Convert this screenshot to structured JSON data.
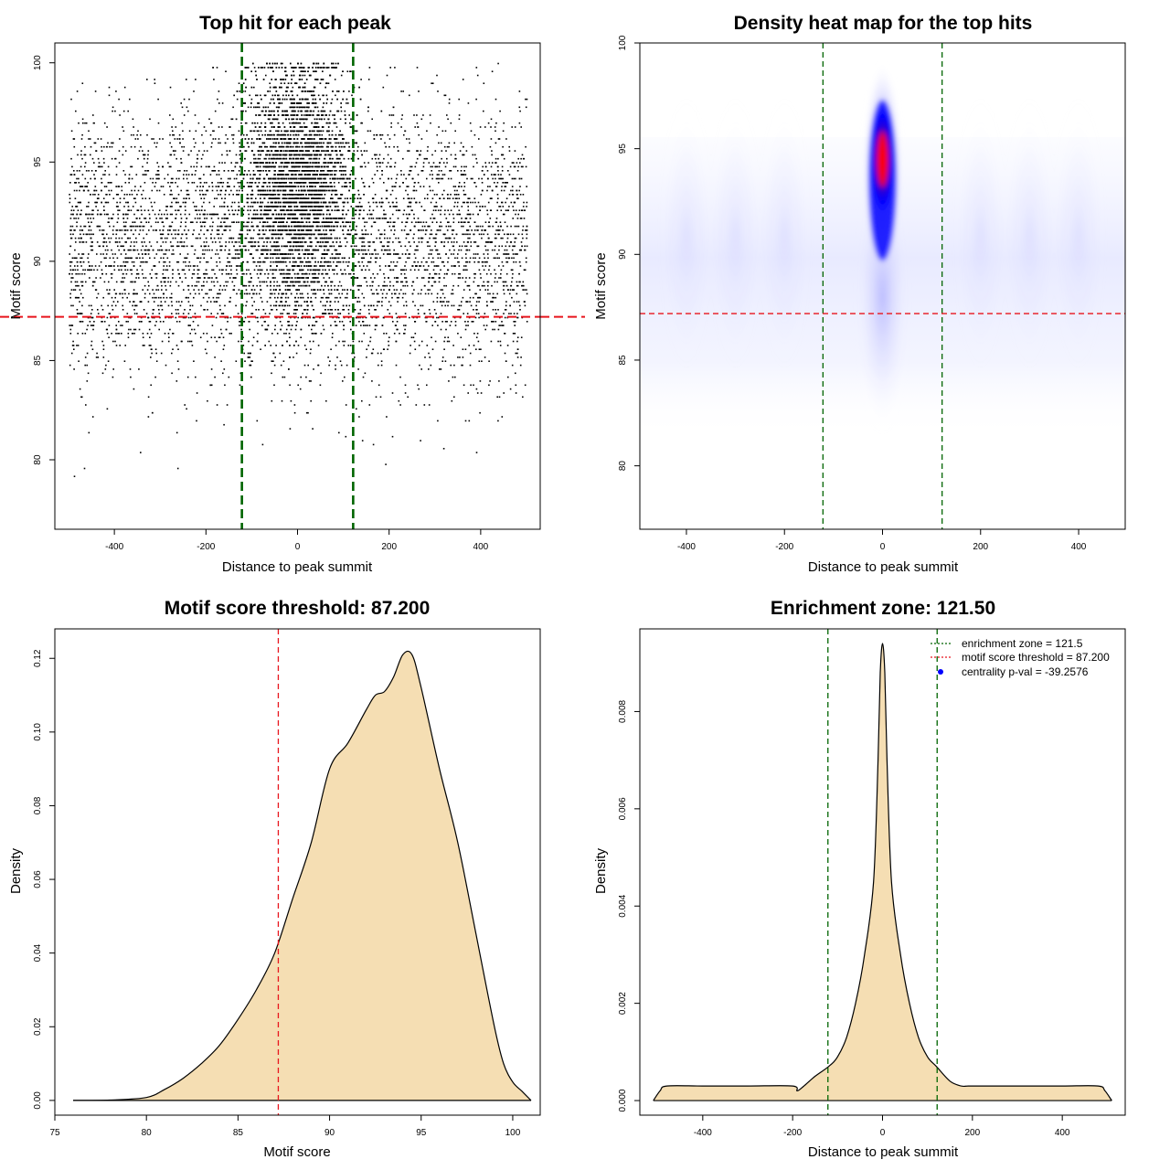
{
  "colors": {
    "point": "#000000",
    "threshold_line": "#e8141c",
    "zone_line": "#006400",
    "fill": "#f5deb3",
    "heat_low": "#ffffff",
    "heat_mid": "#0000ff",
    "heat_high": "#ff0000",
    "legend_dot": "#0000ff"
  },
  "chart_data": [
    {
      "id": "scatter",
      "type": "scatter",
      "title": "Top hit for each peak",
      "xlabel": "Distance to peak summit",
      "ylabel": "Motif score",
      "xlim": [
        -530,
        530
      ],
      "ylim": [
        76.5,
        101
      ],
      "xticks": [
        -400,
        -200,
        0,
        200,
        400
      ],
      "yticks": [
        80,
        85,
        90,
        95,
        100
      ],
      "x_range": [
        -500,
        500
      ],
      "y_range": [
        77,
        100
      ],
      "central_peak": {
        "x_center": 0,
        "x_sd": 55,
        "y_center": 94,
        "y_sd": 3
      },
      "background_score_center": 91,
      "threshold_y": 87.2,
      "zone_x": [
        -121.5,
        121.5
      ]
    },
    {
      "id": "heatmap",
      "type": "heatmap",
      "title": "Density heat map for the top hits",
      "xlabel": "Distance to peak summit",
      "ylabel": "Motif score",
      "xlim": [
        -495,
        495
      ],
      "ylim": [
        77,
        100
      ],
      "xticks": [
        -400,
        -200,
        0,
        200,
        400
      ],
      "yticks": [
        80,
        85,
        90,
        95,
        100
      ],
      "peak": {
        "x": 0,
        "y": 94.5
      },
      "color_scale": [
        "white",
        "blue",
        "red"
      ],
      "threshold_y": 87.2,
      "zone_x": [
        -121.5,
        121.5
      ]
    },
    {
      "id": "score-density",
      "type": "area",
      "title": "Motif score threshold: 87.200",
      "xlabel": "Motif score",
      "ylabel": "Density",
      "xlim": [
        75,
        101.5
      ],
      "ylim": [
        -0.004,
        0.128
      ],
      "xticks": [
        75,
        80,
        85,
        90,
        95,
        100
      ],
      "yticks": [
        0.0,
        0.02,
        0.04,
        0.06,
        0.08,
        0.1,
        0.12
      ],
      "ytick_labels": [
        "0.00",
        "0.02",
        "0.04",
        "0.06",
        "0.08",
        "0.10",
        "0.12"
      ],
      "x": [
        76,
        78,
        80,
        81,
        82,
        83,
        84,
        85,
        86,
        87,
        88,
        89,
        90,
        91,
        92,
        92.5,
        93,
        93.5,
        94,
        94.5,
        95,
        96,
        97,
        98,
        99,
        99.5,
        100,
        100.5,
        101
      ],
      "y": [
        0.0,
        0.0001,
        0.0008,
        0.003,
        0.006,
        0.01,
        0.015,
        0.022,
        0.03,
        0.04,
        0.055,
        0.07,
        0.09,
        0.097,
        0.106,
        0.11,
        0.111,
        0.115,
        0.121,
        0.121,
        0.112,
        0.09,
        0.07,
        0.045,
        0.02,
        0.01,
        0.005,
        0.0025,
        0.0
      ],
      "threshold_x": 87.2
    },
    {
      "id": "distance-density",
      "type": "area",
      "title": "Enrichment zone: 121.50",
      "xlabel": "Distance to peak summit",
      "ylabel": "Density",
      "xlim": [
        -540,
        540
      ],
      "ylim": [
        -0.0003,
        0.0097
      ],
      "xticks": [
        -400,
        -200,
        0,
        200,
        400
      ],
      "yticks": [
        0.0,
        0.002,
        0.004,
        0.006,
        0.008
      ],
      "ytick_labels": [
        "0.000",
        "0.002",
        "0.004",
        "0.006",
        "0.008"
      ],
      "x": [
        -510,
        -495,
        -480,
        -400,
        -300,
        -200,
        -190,
        -175,
        -150,
        -120,
        -100,
        -80,
        -60,
        -40,
        -20,
        -10,
        -5,
        0,
        5,
        10,
        20,
        40,
        60,
        80,
        100,
        120,
        150,
        175,
        190,
        200,
        300,
        400,
        480,
        495,
        510
      ],
      "y": [
        0.0,
        0.0002,
        0.0003,
        0.0003,
        0.0003,
        0.0003,
        0.0002,
        0.0003,
        0.0005,
        0.0007,
        0.0009,
        0.0013,
        0.002,
        0.003,
        0.0045,
        0.007,
        0.0088,
        0.0094,
        0.0088,
        0.007,
        0.0045,
        0.003,
        0.002,
        0.0013,
        0.0009,
        0.0007,
        0.0004,
        0.0003,
        0.0003,
        0.0003,
        0.0003,
        0.0003,
        0.0003,
        0.0002,
        0.0
      ],
      "zone_x": [
        -121.5,
        121.5
      ],
      "legend": [
        {
          "label": "enrichment zone = 121.5",
          "style": "dotted-line",
          "color": "#006400"
        },
        {
          "label": "motif score threshold = 87.200",
          "style": "dotted-line",
          "color": "#e8141c"
        },
        {
          "label": "centrality p-val = -39.2576",
          "style": "dot",
          "color": "#0000ff"
        }
      ],
      "legend_position": "top-right"
    }
  ]
}
